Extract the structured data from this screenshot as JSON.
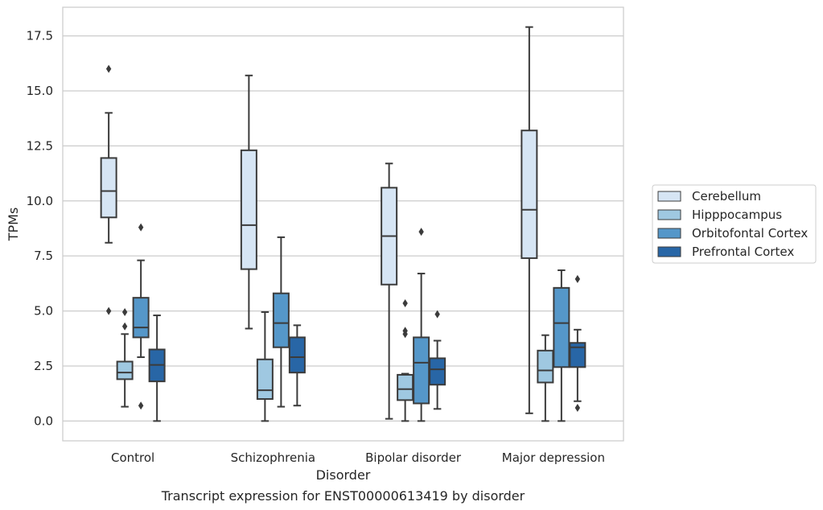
{
  "chart_data": {
    "type": "box",
    "xlabel": "Disorder",
    "ylabel": "TPMs",
    "caption": "Transcript expression for ENST00000613419 by disorder",
    "categories": [
      "Control",
      "Schizophrenia",
      "Bipolar disorder",
      "Major depression"
    ],
    "ylim": [
      -0.9,
      18.8
    ],
    "yticks": [
      0.0,
      2.5,
      5.0,
      7.5,
      10.0,
      12.5,
      15.0,
      17.5
    ],
    "ytick_labels": [
      "0.0",
      "2.5",
      "5.0",
      "7.5",
      "10.0",
      "12.5",
      "15.0",
      "17.5"
    ],
    "grid": "horizontal",
    "legend_position": "right",
    "series": [
      {
        "name": "Cerebellum",
        "color": "#d6e5f4",
        "boxes": [
          {
            "whisker_low": 8.1,
            "q1": 9.25,
            "median": 10.45,
            "q3": 11.95,
            "whisker_high": 14.0,
            "outliers": [
              16.0,
              5.0
            ]
          },
          {
            "whisker_low": 4.2,
            "q1": 6.9,
            "median": 8.9,
            "q3": 12.3,
            "whisker_high": 15.7,
            "outliers": []
          },
          {
            "whisker_low": 0.1,
            "q1": 6.2,
            "median": 8.4,
            "q3": 10.6,
            "whisker_high": 11.7,
            "outliers": []
          },
          {
            "whisker_low": 0.35,
            "q1": 7.4,
            "median": 9.6,
            "q3": 13.2,
            "whisker_high": 17.9,
            "outliers": []
          }
        ]
      },
      {
        "name": "Hipppocampus",
        "color": "#9fc8e1",
        "boxes": [
          {
            "whisker_low": 0.65,
            "q1": 1.9,
            "median": 2.2,
            "q3": 2.7,
            "whisker_high": 3.95,
            "outliers": [
              4.95,
              4.3
            ]
          },
          {
            "whisker_low": 0.0,
            "q1": 1.0,
            "median": 1.4,
            "q3": 2.8,
            "whisker_high": 4.95,
            "outliers": []
          },
          {
            "whisker_low": 0.0,
            "q1": 0.95,
            "median": 1.45,
            "q3": 2.1,
            "whisker_high": 2.15,
            "outliers": [
              5.35,
              4.1,
              3.95
            ]
          },
          {
            "whisker_low": 0.0,
            "q1": 1.75,
            "median": 2.3,
            "q3": 3.2,
            "whisker_high": 3.9,
            "outliers": []
          }
        ]
      },
      {
        "name": "Orbitofontal Cortex",
        "color": "#5597c9",
        "boxes": [
          {
            "whisker_low": 2.9,
            "q1": 3.8,
            "median": 4.25,
            "q3": 5.6,
            "whisker_high": 7.3,
            "outliers": [
              8.8,
              0.7
            ]
          },
          {
            "whisker_low": 0.65,
            "q1": 3.35,
            "median": 4.45,
            "q3": 5.8,
            "whisker_high": 8.35,
            "outliers": []
          },
          {
            "whisker_low": 0.0,
            "q1": 0.8,
            "median": 2.65,
            "q3": 3.8,
            "whisker_high": 6.7,
            "outliers": [
              8.6
            ]
          },
          {
            "whisker_low": 0.0,
            "q1": 2.45,
            "median": 4.45,
            "q3": 6.05,
            "whisker_high": 6.85,
            "outliers": []
          }
        ]
      },
      {
        "name": "Prefrontal Cortex",
        "color": "#2866a6",
        "boxes": [
          {
            "whisker_low": 0.0,
            "q1": 1.8,
            "median": 2.55,
            "q3": 3.25,
            "whisker_high": 4.8,
            "outliers": []
          },
          {
            "whisker_low": 0.7,
            "q1": 2.2,
            "median": 2.9,
            "q3": 3.8,
            "whisker_high": 4.35,
            "outliers": []
          },
          {
            "whisker_low": 0.55,
            "q1": 1.65,
            "median": 2.35,
            "q3": 2.85,
            "whisker_high": 3.65,
            "outliers": [
              4.85
            ]
          },
          {
            "whisker_low": 0.9,
            "q1": 2.45,
            "median": 3.35,
            "q3": 3.55,
            "whisker_high": 4.15,
            "outliers": [
              6.45,
              0.6
            ]
          }
        ]
      }
    ]
  }
}
